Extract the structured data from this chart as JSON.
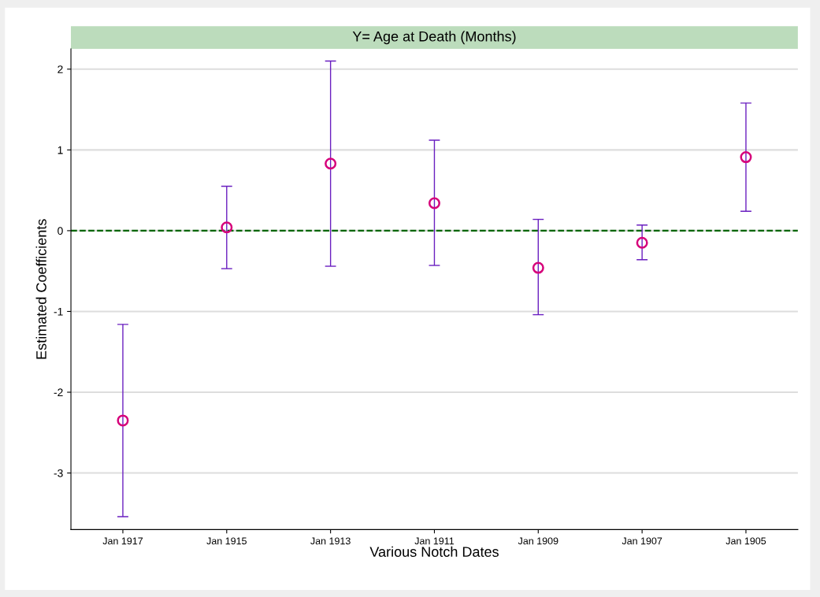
{
  "chart_data": {
    "type": "scatter",
    "title": "Y= Age at Death (Months)",
    "xlabel": "Various Notch Dates",
    "ylabel": "Estimated Coefficients",
    "categories": [
      "Jan 1917",
      "Jan 1915",
      "Jan 1913",
      "Jan 1911",
      "Jan 1909",
      "Jan 1907",
      "Jan 1905"
    ],
    "series": [
      {
        "color": "#d6007a",
        "values": [
          -2.35,
          0.04,
          0.83,
          0.34,
          -0.46,
          -0.15,
          0.91
        ],
        "errors": [
          [
            -3.54,
            -1.16
          ],
          [
            -0.47,
            0.55
          ],
          [
            -0.44,
            2.1
          ],
          [
            -0.43,
            1.12
          ],
          [
            -1.04,
            0.14
          ],
          [
            -0.36,
            0.07
          ],
          [
            0.24,
            1.58
          ]
        ]
      }
    ],
    "ylim": [
      -3.7,
      2.25
    ],
    "yticks": [
      -3,
      -2,
      -1,
      0,
      1,
      2
    ],
    "grid": "y",
    "legend": false,
    "marker": "circle",
    "ref_lines": [
      {
        "axis": "y",
        "value": 0,
        "color": "#006400",
        "line_style": "dashed"
      }
    ]
  }
}
